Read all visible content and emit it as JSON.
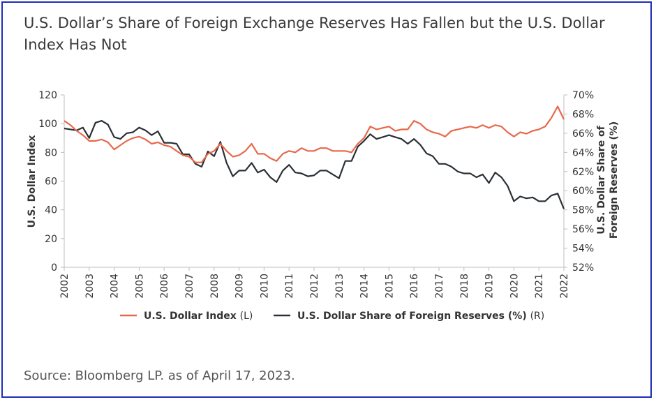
{
  "title": "U.S. Dollar’s Share of Foreign Exchange Reserves Has Fallen but the U.S. Dollar Index Has Not",
  "source": "Source: Bloomberg LP. as of April 17, 2023.",
  "chart_data": {
    "type": "line",
    "ylabel_left": "U.S. Dollar Index",
    "ylabel_right": "U.S. Dollar Share of Foreign Reserves (%)",
    "ylim_left": [
      0,
      120
    ],
    "ylim_right": [
      52,
      70
    ],
    "xlim": [
      2002,
      2022
    ],
    "x_ticks": [
      "2002",
      "2003",
      "2004",
      "2005",
      "2006",
      "2007",
      "2008",
      "2009",
      "2010",
      "2011",
      "2012",
      "2013",
      "2014",
      "2015",
      "2016",
      "2017",
      "2018",
      "2019",
      "2020",
      "2021",
      "2022"
    ],
    "y_ticks_left": [
      "0",
      "20",
      "40",
      "60",
      "80",
      "100",
      "120"
    ],
    "y_ticks_right": [
      "52%",
      "54%",
      "56%",
      "58%",
      "60%",
      "62%",
      "64%",
      "66%",
      "68%",
      "70%"
    ],
    "legend_placement": "bottom",
    "colors": {
      "index": "#e8684a",
      "share": "#2a3035"
    },
    "series": [
      {
        "name": "U.S. Dollar Index",
        "axis_note": "(L)",
        "axis": "left",
        "x": [
          2002.0,
          2002.25,
          2002.5,
          2002.75,
          2003.0,
          2003.25,
          2003.5,
          2003.75,
          2004.0,
          2004.25,
          2004.5,
          2004.75,
          2005.0,
          2005.25,
          2005.5,
          2005.75,
          2006.0,
          2006.25,
          2006.5,
          2006.75,
          2007.0,
          2007.25,
          2007.5,
          2007.75,
          2008.0,
          2008.25,
          2008.5,
          2008.75,
          2009.0,
          2009.25,
          2009.5,
          2009.75,
          2010.0,
          2010.25,
          2010.5,
          2010.75,
          2011.0,
          2011.25,
          2011.5,
          2011.75,
          2012.0,
          2012.25,
          2012.5,
          2012.75,
          2013.0,
          2013.25,
          2013.5,
          2013.75,
          2014.0,
          2014.25,
          2014.5,
          2014.75,
          2015.0,
          2015.25,
          2015.5,
          2015.75,
          2016.0,
          2016.25,
          2016.5,
          2016.75,
          2017.0,
          2017.25,
          2017.5,
          2017.75,
          2018.0,
          2018.25,
          2018.5,
          2018.75,
          2019.0,
          2019.25,
          2019.5,
          2019.75,
          2020.0,
          2020.25,
          2020.5,
          2020.75,
          2021.0,
          2021.25,
          2021.5,
          2021.75,
          2022.0
        ],
        "values": [
          102,
          99,
          95,
          92,
          88,
          88,
          89,
          87,
          82,
          85,
          88,
          90,
          91,
          89,
          86,
          87,
          85,
          84,
          81,
          78,
          77,
          73,
          73,
          79,
          81,
          86,
          81,
          77,
          78,
          81,
          86,
          79,
          79,
          76,
          74,
          79,
          81,
          80,
          83,
          81,
          81,
          83,
          83,
          81,
          81,
          81,
          80,
          86,
          90,
          98,
          96,
          97,
          98,
          95,
          96,
          96,
          102,
          100,
          96,
          94,
          93,
          91,
          95,
          96,
          97,
          98,
          97,
          99,
          97,
          99,
          98,
          94,
          91,
          94,
          93,
          95,
          96,
          98,
          104,
          112,
          103
        ]
      },
      {
        "name": "U.S. Dollar Share of Foreign Reserves (%)",
        "axis_note": "(R)",
        "axis": "right",
        "x": [
          2002.0,
          2002.25,
          2002.5,
          2002.75,
          2003.0,
          2003.25,
          2003.5,
          2003.75,
          2004.0,
          2004.25,
          2004.5,
          2004.75,
          2005.0,
          2005.25,
          2005.5,
          2005.75,
          2006.0,
          2006.25,
          2006.5,
          2006.75,
          2007.0,
          2007.25,
          2007.5,
          2007.75,
          2008.0,
          2008.25,
          2008.5,
          2008.75,
          2009.0,
          2009.25,
          2009.5,
          2009.75,
          2010.0,
          2010.25,
          2010.5,
          2010.75,
          2011.0,
          2011.25,
          2011.5,
          2011.75,
          2012.0,
          2012.25,
          2012.5,
          2012.75,
          2013.0,
          2013.25,
          2013.5,
          2013.75,
          2014.0,
          2014.25,
          2014.5,
          2014.75,
          2015.0,
          2015.25,
          2015.5,
          2015.75,
          2016.0,
          2016.25,
          2016.5,
          2016.75,
          2017.0,
          2017.25,
          2017.5,
          2017.75,
          2018.0,
          2018.25,
          2018.5,
          2018.75,
          2019.0,
          2019.25,
          2019.5,
          2019.75,
          2020.0,
          2020.25,
          2020.5,
          2020.75,
          2021.0,
          2021.25,
          2021.5,
          2021.75,
          2022.0
        ],
        "values": [
          66.5,
          66.4,
          66.3,
          66.6,
          65.5,
          67.1,
          67.3,
          66.9,
          65.6,
          65.4,
          66.0,
          66.1,
          66.6,
          66.3,
          65.8,
          66.2,
          65.0,
          65.0,
          64.9,
          63.8,
          63.8,
          62.8,
          62.5,
          64.1,
          63.6,
          65.1,
          62.9,
          61.5,
          62.1,
          62.1,
          62.9,
          61.9,
          62.2,
          61.4,
          60.9,
          62.1,
          62.7,
          61.9,
          61.8,
          61.5,
          61.6,
          62.1,
          62.1,
          61.7,
          61.3,
          63.1,
          63.1,
          64.6,
          65.2,
          65.9,
          65.4,
          65.6,
          65.8,
          65.6,
          65.4,
          64.9,
          65.4,
          64.8,
          63.9,
          63.6,
          62.8,
          62.8,
          62.5,
          62.0,
          61.8,
          61.8,
          61.4,
          61.7,
          60.8,
          61.9,
          61.4,
          60.5,
          58.9,
          59.4,
          59.2,
          59.3,
          58.9,
          58.9,
          59.5,
          59.7,
          58.1
        ]
      }
    ]
  }
}
